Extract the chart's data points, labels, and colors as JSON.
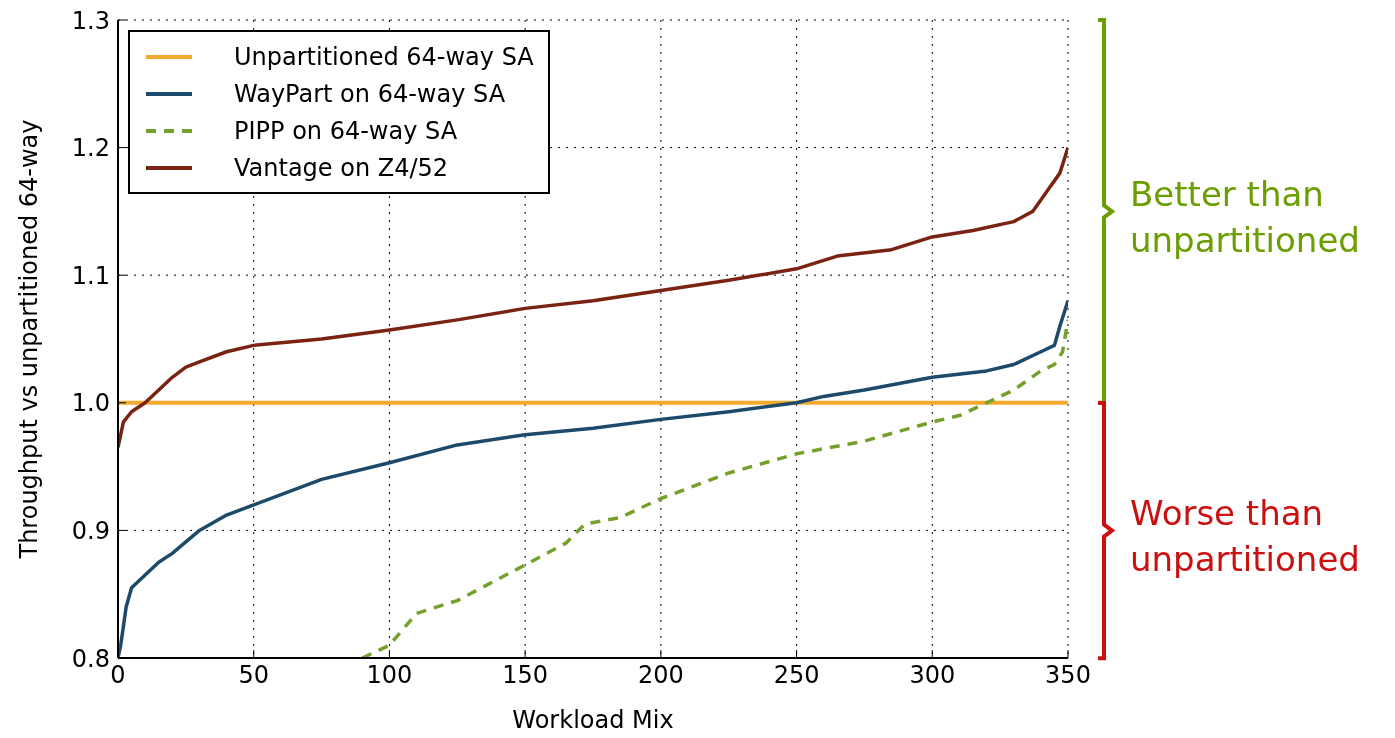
{
  "chart_data": {
    "type": "line",
    "xlabel": "Workload Mix",
    "ylabel": "Throughput vs unpartitioned 64-way",
    "xlim": [
      0,
      350
    ],
    "xticks": [
      0,
      50,
      100,
      150,
      200,
      250,
      300,
      350
    ],
    "ylim": [
      0.8,
      1.3
    ],
    "yticks": [
      0.8,
      0.9,
      {
        "value": 1,
        "label": "1.0"
      },
      1.1,
      1.2,
      1.3
    ],
    "grid": true,
    "legend": "top left",
    "marker": "none",
    "series": [
      {
        "name": "Unpartitioned 64-way SA",
        "color": "#f5a82e",
        "x": [
          0,
          350
        ],
        "values": [
          1.0,
          1.0
        ]
      },
      {
        "name": "WayPart on 64-way SA",
        "color": "#1d4a6a",
        "x": [
          0,
          1,
          3,
          5,
          10,
          15,
          20,
          30,
          40,
          50,
          75,
          100,
          125,
          150,
          175,
          200,
          225,
          250,
          260,
          275,
          300,
          320,
          330,
          340,
          345,
          347,
          350
        ],
        "values": [
          0.8,
          0.81,
          0.84,
          0.855,
          0.865,
          0.875,
          0.882,
          0.9,
          0.912,
          0.92,
          0.94,
          0.953,
          0.967,
          0.975,
          0.98,
          0.987,
          0.993,
          1.0,
          1.005,
          1.01,
          1.02,
          1.025,
          1.03,
          1.04,
          1.045,
          1.06,
          1.08
        ]
      },
      {
        "name": "PIPP on 64-way SA",
        "color": "#76a02c",
        "line_style": "dashed",
        "x": [
          90,
          100,
          110,
          125,
          150,
          165,
          172,
          185,
          200,
          225,
          250,
          275,
          300,
          310,
          320,
          330,
          340,
          345,
          348,
          350
        ],
        "values": [
          0.8,
          0.81,
          0.835,
          0.845,
          0.873,
          0.89,
          0.905,
          0.91,
          0.925,
          0.945,
          0.96,
          0.97,
          0.985,
          0.99,
          1.0,
          1.01,
          1.025,
          1.03,
          1.04,
          1.065
        ]
      },
      {
        "name": "Vantage on Z4/52",
        "color": "#7b2313",
        "x": [
          0,
          2,
          5,
          10,
          15,
          20,
          25,
          30,
          40,
          50,
          75,
          100,
          125,
          150,
          175,
          200,
          225,
          250,
          265,
          285,
          300,
          315,
          330,
          337,
          342,
          347,
          350
        ],
        "values": [
          0.965,
          0.985,
          0.993,
          1.0,
          1.01,
          1.02,
          1.028,
          1.032,
          1.04,
          1.045,
          1.05,
          1.057,
          1.065,
          1.074,
          1.08,
          1.088,
          1.096,
          1.105,
          1.115,
          1.12,
          1.13,
          1.135,
          1.142,
          1.15,
          1.165,
          1.18,
          1.2
        ]
      }
    ],
    "annotations": [
      "Better than unpartitioned",
      "Worse than unpartitioned"
    ]
  }
}
